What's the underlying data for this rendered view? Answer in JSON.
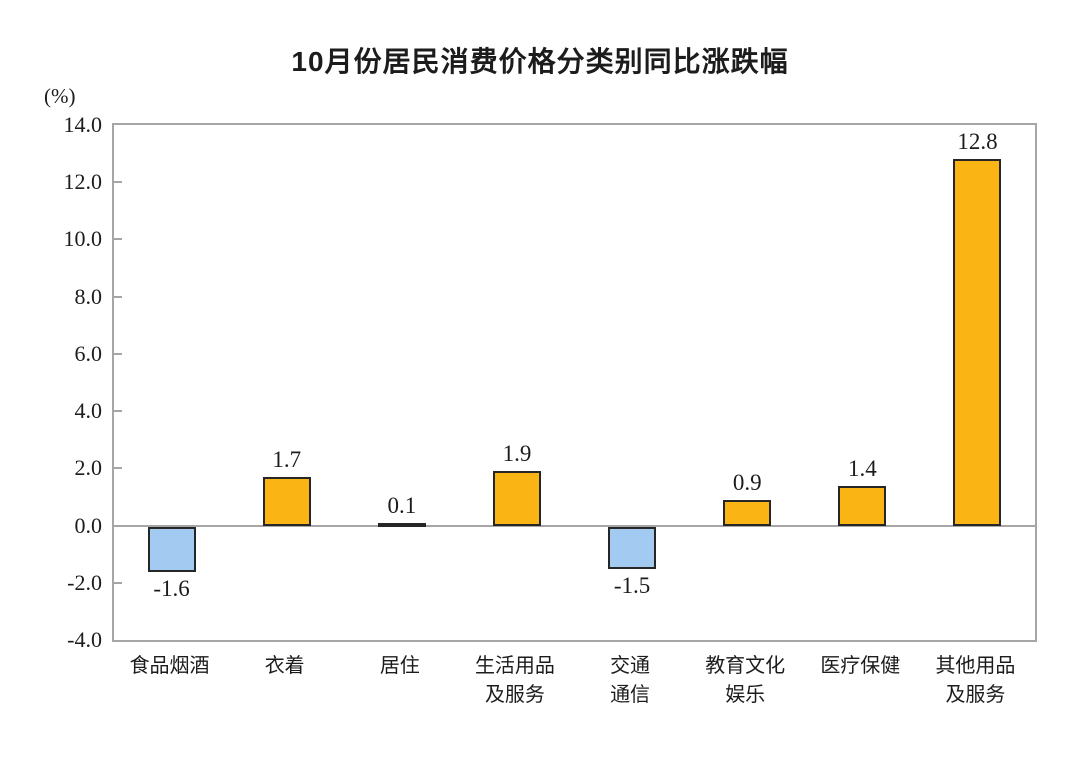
{
  "chart_data": {
    "type": "bar",
    "title": "10月份居民消费价格分类别同比涨跌幅",
    "unit_label": "(%)",
    "categories": [
      "食品烟酒",
      "衣着",
      "居住",
      "生活用品及服务",
      "交通通信",
      "教育文化娱乐",
      "医疗保健",
      "其他用品及服务"
    ],
    "category_label_lines": [
      [
        "食品烟酒"
      ],
      [
        "衣着"
      ],
      [
        "居住"
      ],
      [
        "生活用品",
        "及服务"
      ],
      [
        "交通",
        "通信"
      ],
      [
        "教育文化",
        "娱乐"
      ],
      [
        "医疗保健"
      ],
      [
        "其他用品",
        "及服务"
      ]
    ],
    "values": [
      -1.6,
      1.7,
      0.1,
      1.9,
      -1.5,
      0.9,
      1.4,
      12.8
    ],
    "value_labels": [
      "-1.6",
      "1.7",
      "0.1",
      "1.9",
      "-1.5",
      "0.9",
      "1.4",
      "12.8"
    ],
    "ylim": [
      -4.0,
      14.0
    ],
    "ytick_step": 2.0,
    "ytick_labels": [
      "14.0",
      "12.0",
      "10.0",
      "8.0",
      "6.0",
      "4.0",
      "2.0",
      "0.0",
      "-2.0",
      "-4.0"
    ],
    "grid": false,
    "legend": null,
    "colors": {
      "positive_bar": "#FAB515",
      "negative_bar": "#A3CAF0",
      "bar_border": "#262626",
      "axis": "#A6A6A6",
      "text": "#1C1C1C",
      "background": "#FFFFFF"
    }
  }
}
